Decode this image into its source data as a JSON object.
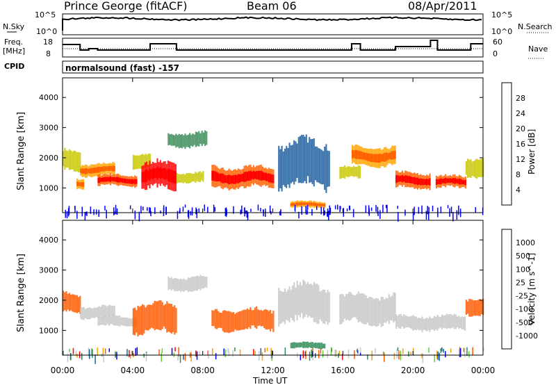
{
  "header": {
    "site": "Prince George (fitACF)",
    "beam": "Beam 06",
    "date": "08/Apr/2011"
  },
  "noise_panel": {
    "left_label": "N.Sky",
    "left_ticks": [
      "10^5",
      "10^0"
    ],
    "right_label": "N.Search",
    "right_ticks": [
      "10^5",
      "10^0"
    ]
  },
  "freq_panel": {
    "left_label_1": "Freq.",
    "left_label_2": "[MHz]",
    "left_ticks": [
      "18",
      "8"
    ],
    "right_label": "Nave",
    "right_ticks": [
      "60",
      "0"
    ]
  },
  "cpid": {
    "label": "CPID",
    "value": "normalsound (fast) -157"
  },
  "colors": {
    "power": [
      "#0000ff",
      "#2060a0",
      "#3c8c5a",
      "#33aa33",
      "#c8c800",
      "#ffa500",
      "#ff6000",
      "#ff0000"
    ],
    "velocity": [
      "#ff0000",
      "#ff5a00",
      "#ffa000",
      "#c8c8c8",
      "#c8c8c8",
      "#66cc33",
      "#2e8b57",
      "#1f5fa0",
      "#0000ff"
    ]
  },
  "chart_data": [
    {
      "type": "heatmap",
      "title": "Power",
      "ylabel": "Slant Range [km]",
      "xlabel": "Time UT",
      "x_ticks": [
        "00:00",
        "04:00",
        "08:00",
        "12:00",
        "16:00",
        "20:00",
        "00:00"
      ],
      "x_range_hours": [
        0,
        24
      ],
      "y_ticks": [
        1000,
        2000,
        3000,
        4000
      ],
      "ylim": [
        180,
        4650
      ],
      "colorbar": {
        "label": "Power [dB]",
        "ticks": [
          4,
          8,
          12,
          16,
          20,
          24,
          28
        ],
        "range": [
          0,
          32
        ]
      },
      "echo_bands": [
        {
          "start_h": 0.0,
          "end_h": 1.0,
          "center_km": 1900,
          "width_km": 500,
          "power_db": 18
        },
        {
          "start_h": 0.8,
          "end_h": 1.2,
          "center_km": 1150,
          "width_km": 250,
          "power_db": 22
        },
        {
          "start_h": 1.0,
          "end_h": 3.0,
          "center_km": 1600,
          "width_km": 300,
          "power_db": 20
        },
        {
          "start_h": 2.0,
          "end_h": 4.2,
          "center_km": 1250,
          "width_km": 280,
          "power_db": 26
        },
        {
          "start_h": 4.0,
          "end_h": 5.0,
          "center_km": 1900,
          "width_km": 350,
          "power_db": 16
        },
        {
          "start_h": 4.5,
          "end_h": 6.5,
          "center_km": 1400,
          "width_km": 650,
          "power_db": 28
        },
        {
          "start_h": 6.0,
          "end_h": 8.2,
          "center_km": 2600,
          "width_km": 350,
          "power_db": 10
        },
        {
          "start_h": 6.5,
          "end_h": 8.0,
          "center_km": 1350,
          "width_km": 250,
          "power_db": 16
        },
        {
          "start_h": 8.5,
          "end_h": 12.0,
          "center_km": 1350,
          "width_km": 500,
          "power_db": 26
        },
        {
          "start_h": 12.3,
          "end_h": 15.2,
          "center_km": 1800,
          "width_km": 1100,
          "power_db": 6
        },
        {
          "start_h": 13.0,
          "end_h": 15.0,
          "center_km": 450,
          "width_km": 160,
          "power_db": 22
        },
        {
          "start_h": 15.8,
          "end_h": 17.0,
          "center_km": 1500,
          "width_km": 300,
          "power_db": 18
        },
        {
          "start_h": 16.5,
          "end_h": 19.0,
          "center_km": 2050,
          "width_km": 450,
          "power_db": 22
        },
        {
          "start_h": 19.0,
          "end_h": 21.0,
          "center_km": 1250,
          "width_km": 380,
          "power_db": 24
        },
        {
          "start_h": 21.3,
          "end_h": 23.0,
          "center_km": 1200,
          "width_km": 300,
          "power_db": 24
        },
        {
          "start_h": 23.0,
          "end_h": 24.0,
          "center_km": 1700,
          "width_km": 450,
          "power_db": 18
        }
      ]
    },
    {
      "type": "heatmap",
      "title": "Velocity",
      "ylabel": "Slant Range [km]",
      "xlabel": "Time UT",
      "x_ticks": [
        "00:00",
        "04:00",
        "08:00",
        "12:00",
        "16:00",
        "20:00",
        "00:00"
      ],
      "x_range_hours": [
        0,
        24
      ],
      "y_ticks": [
        1000,
        2000,
        3000,
        4000
      ],
      "ylim": [
        180,
        4650
      ],
      "colorbar": {
        "label": "Velocity [m s^-1]",
        "ticks": [
          "1000",
          "500",
          "100",
          "25",
          "-25",
          "-100",
          "-500",
          "-1000"
        ]
      },
      "echo_bands": [
        {
          "start_h": 0.0,
          "end_h": 1.0,
          "center_km": 1900,
          "width_km": 500,
          "velocity": -200
        },
        {
          "start_h": 1.0,
          "end_h": 3.0,
          "center_km": 1600,
          "width_km": 300,
          "velocity": 0
        },
        {
          "start_h": 2.0,
          "end_h": 4.2,
          "center_km": 1300,
          "width_km": 250,
          "velocity": 0
        },
        {
          "start_h": 4.0,
          "end_h": 6.5,
          "center_km": 1400,
          "width_km": 700,
          "velocity": -300
        },
        {
          "start_h": 6.0,
          "end_h": 8.2,
          "center_km": 2550,
          "width_km": 350,
          "velocity": 0
        },
        {
          "start_h": 8.5,
          "end_h": 12.0,
          "center_km": 1350,
          "width_km": 500,
          "velocity": -150
        },
        {
          "start_h": 12.3,
          "end_h": 15.2,
          "center_km": 1900,
          "width_km": 900,
          "velocity": 0
        },
        {
          "start_h": 13.0,
          "end_h": 15.0,
          "center_km": 500,
          "width_km": 150,
          "velocity": 150
        },
        {
          "start_h": 15.8,
          "end_h": 19.0,
          "center_km": 1700,
          "width_km": 700,
          "velocity": 0
        },
        {
          "start_h": 19.0,
          "end_h": 23.0,
          "center_km": 1250,
          "width_km": 350,
          "velocity": 0
        },
        {
          "start_h": 23.0,
          "end_h": 24.0,
          "center_km": 1800,
          "width_km": 400,
          "velocity": -300
        }
      ]
    }
  ]
}
